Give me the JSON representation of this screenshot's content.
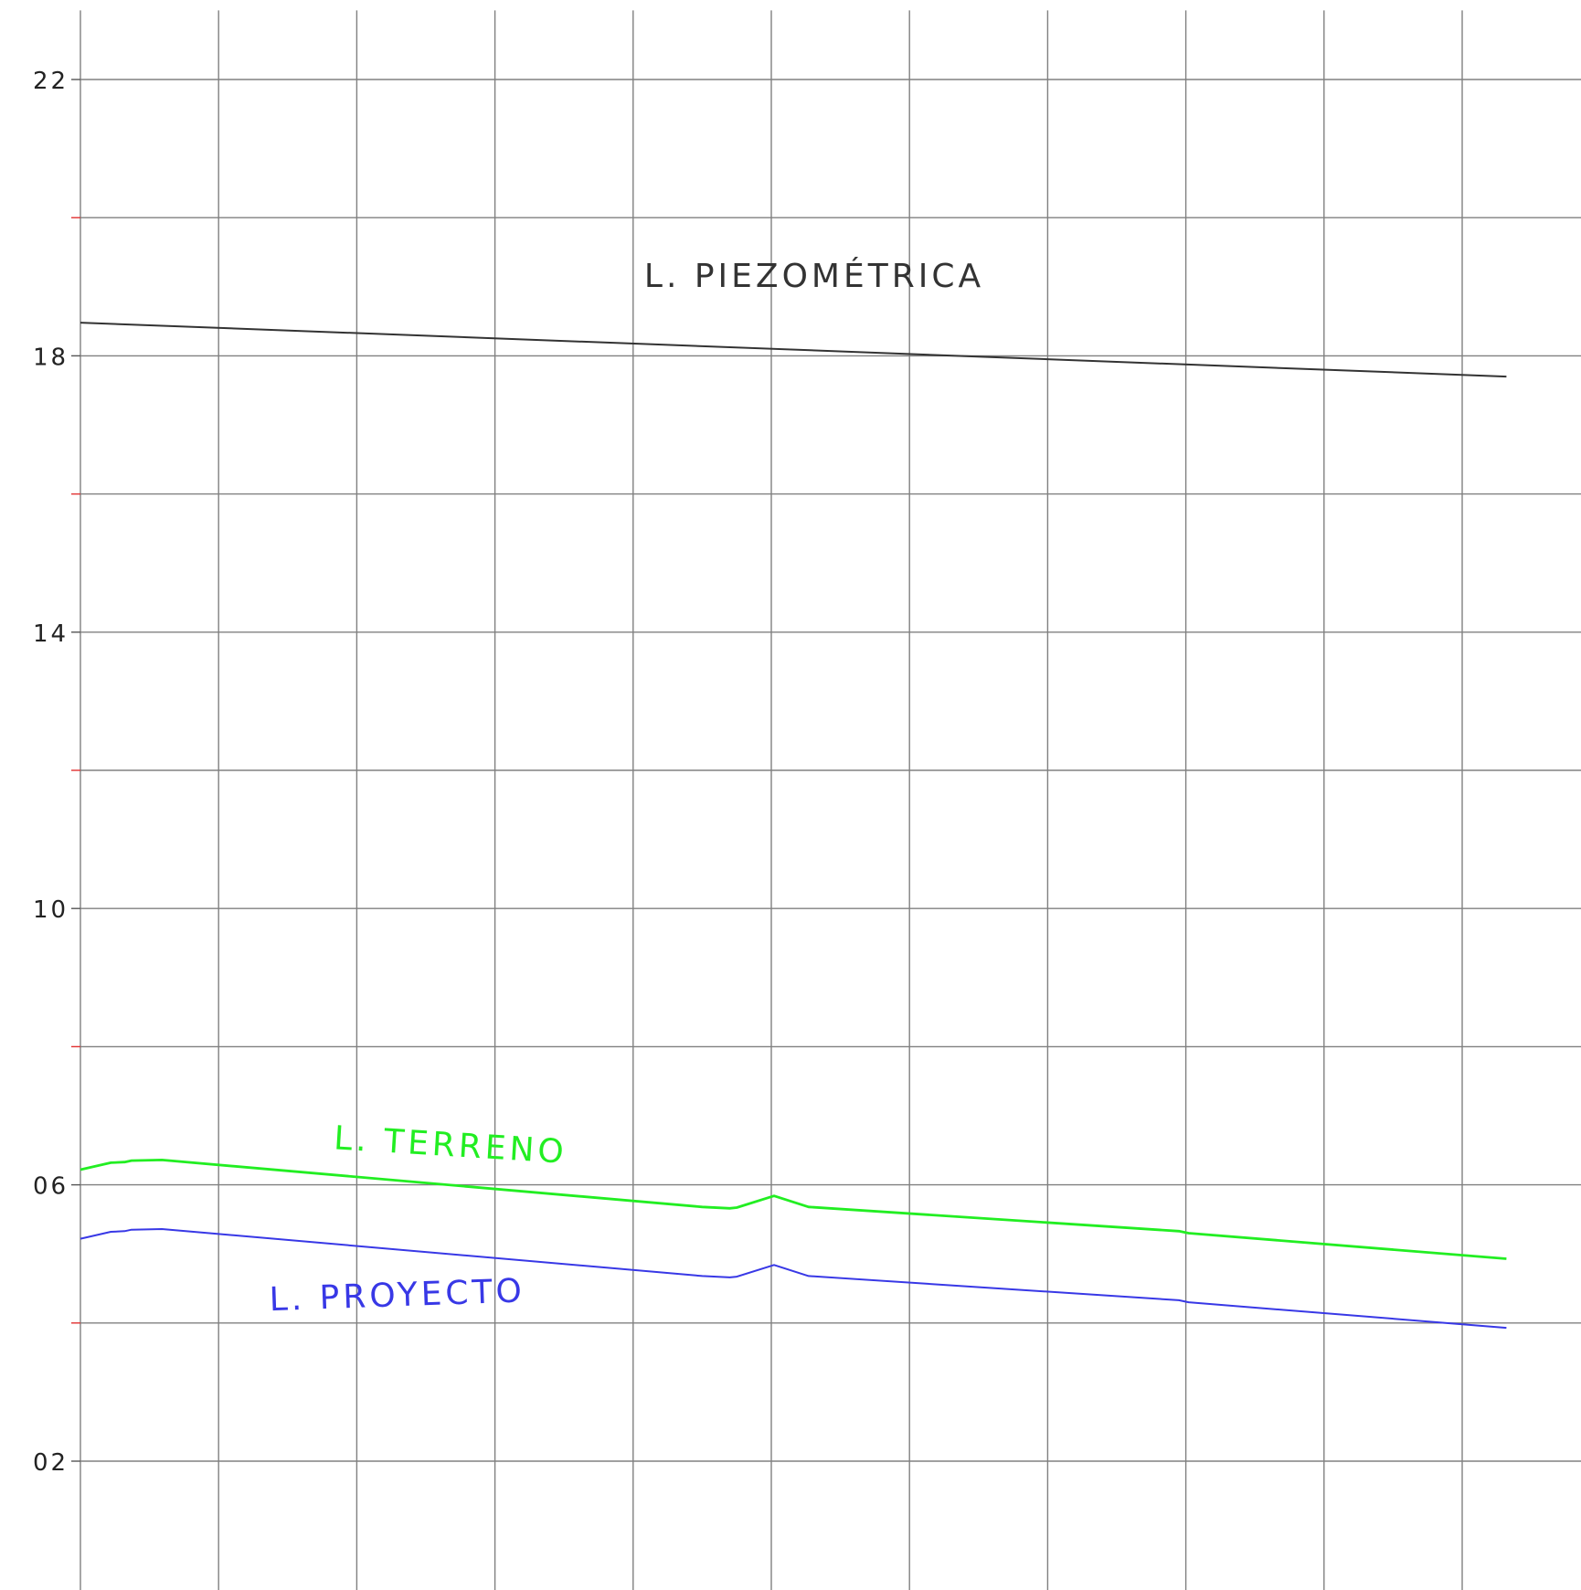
{
  "chart_data": {
    "type": "line",
    "title": "",
    "xlabel": "",
    "ylabel": "",
    "xlim": [
      0,
      11
    ],
    "ylim": [
      0,
      23
    ],
    "grid": true,
    "x_gridlines": [
      0,
      1,
      2,
      3,
      4,
      5,
      6,
      7,
      8,
      9,
      10
    ],
    "y_gridlines": [
      2,
      4,
      6,
      8,
      10,
      12,
      14,
      16,
      18,
      20,
      22
    ],
    "y_ticks": [
      {
        "value": 22,
        "label": "22"
      },
      {
        "value": 18,
        "label": "18"
      },
      {
        "value": 14,
        "label": "14"
      },
      {
        "value": 10,
        "label": "10"
      },
      {
        "value": 6,
        "label": "06"
      },
      {
        "value": 2,
        "label": "02"
      }
    ],
    "series": [
      {
        "name": "L. PIEZOMÉTRICA",
        "color": "#333333",
        "points": [
          [
            0,
            18.48
          ],
          [
            10.32,
            17.7
          ]
        ]
      },
      {
        "name": "L. TERRENO",
        "color": "#22ee22",
        "points": [
          [
            0,
            6.22
          ],
          [
            0.22,
            6.32
          ],
          [
            0.32,
            6.33
          ],
          [
            0.37,
            6.35
          ],
          [
            0.59,
            6.36
          ],
          [
            4.5,
            5.68
          ],
          [
            4.7,
            5.66
          ],
          [
            4.75,
            5.67
          ],
          [
            5.02,
            5.84
          ],
          [
            5.27,
            5.68
          ],
          [
            7.95,
            5.33
          ],
          [
            8.02,
            5.3
          ],
          [
            10.32,
            4.93
          ]
        ]
      },
      {
        "name": "L. PROYECTO",
        "color": "#3838e6",
        "points": [
          [
            0,
            5.22
          ],
          [
            0.22,
            5.32
          ],
          [
            0.32,
            5.33
          ],
          [
            0.37,
            5.35
          ],
          [
            0.59,
            5.36
          ],
          [
            4.5,
            4.68
          ],
          [
            4.7,
            4.66
          ],
          [
            4.75,
            4.67
          ],
          [
            5.02,
            4.84
          ],
          [
            5.27,
            4.68
          ],
          [
            7.95,
            4.33
          ],
          [
            8.02,
            4.3
          ],
          [
            10.32,
            3.93
          ]
        ]
      }
    ],
    "annotations": [
      {
        "text": "L. PIEZOMÉTRICA",
        "x": 4.08,
        "y": 19.0,
        "color": "#333333",
        "rotation": 0
      },
      {
        "text": "L. TERRENO",
        "x": 1.83,
        "y": 6.52,
        "color": "#22ee22",
        "rotation": 3.5
      },
      {
        "text": "L. PROYECTO",
        "x": 1.37,
        "y": 4.18,
        "color": "#3838e6",
        "rotation": -2
      }
    ]
  }
}
